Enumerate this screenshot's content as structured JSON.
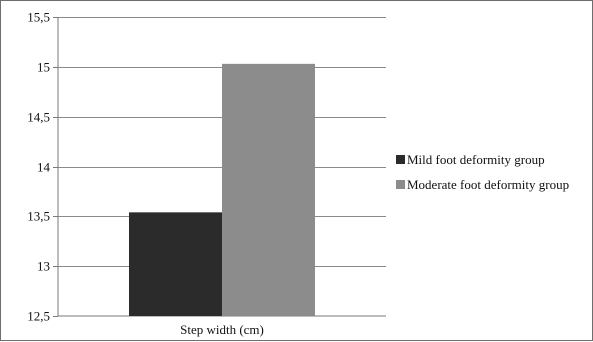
{
  "chart_data": {
    "type": "bar",
    "categories": [
      "Step width (cm)"
    ],
    "series": [
      {
        "name": "Mild foot deformity group",
        "values": [
          13.54
        ],
        "color": "#2b2b2b"
      },
      {
        "name": "Moderate foot deformity group",
        "values": [
          15.03
        ],
        "color": "#8c8c8c"
      }
    ],
    "yticks": [
      "15,5",
      "15",
      "14,5",
      "14",
      "13,5",
      "13",
      "12,5"
    ],
    "ytick_values": [
      15.5,
      15,
      14.5,
      14,
      13.5,
      13,
      12.5
    ],
    "ylim": [
      12.5,
      15.5
    ],
    "grid": true,
    "legend_position": "right",
    "title": "",
    "xlabel": "",
    "ylabel": ""
  }
}
